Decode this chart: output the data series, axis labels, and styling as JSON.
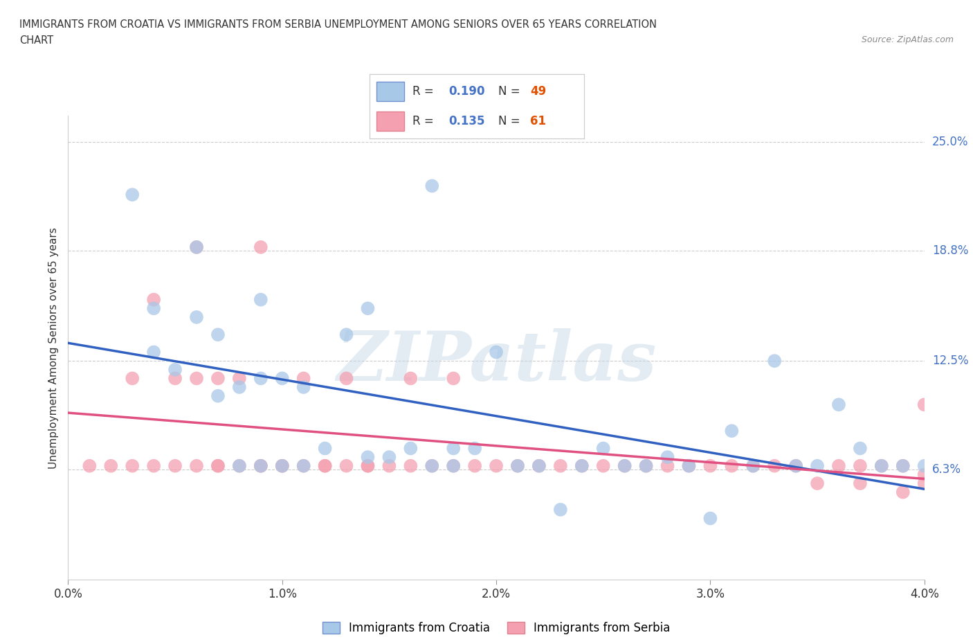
{
  "title_line1": "IMMIGRANTS FROM CROATIA VS IMMIGRANTS FROM SERBIA UNEMPLOYMENT AMONG SENIORS OVER 65 YEARS CORRELATION",
  "title_line2": "CHART",
  "source_text": "Source: ZipAtlas.com",
  "ylabel": "Unemployment Among Seniors over 65 years",
  "xlim": [
    0.0,
    0.04
  ],
  "ylim": [
    0.0,
    0.265
  ],
  "yticks": [
    0.0,
    0.063,
    0.125,
    0.188,
    0.25
  ],
  "ytick_labels": [
    "",
    "6.3%",
    "12.5%",
    "18.8%",
    "25.0%"
  ],
  "xticks": [
    0.0,
    0.01,
    0.02,
    0.03,
    0.04
  ],
  "xtick_labels": [
    "0.0%",
    "1.0%",
    "2.0%",
    "3.0%",
    "4.0%"
  ],
  "croatia_color": "#a8c8e8",
  "serbia_color": "#f4a0b0",
  "regression_croatia_color": "#3060c0",
  "regression_serbia_color": "#e05080",
  "R_croatia": 0.19,
  "N_croatia": 49,
  "R_serbia": 0.135,
  "N_serbia": 61,
  "legend_croatia_color": "#a8c8e8",
  "legend_serbia_color": "#f4a0b0",
  "legend_croatia_border": "#7090d0",
  "legend_serbia_border": "#e08090",
  "watermark_color": "#c8d8e8",
  "croatia_x": [
    0.003,
    0.004,
    0.004,
    0.005,
    0.006,
    0.006,
    0.007,
    0.007,
    0.008,
    0.008,
    0.009,
    0.009,
    0.009,
    0.01,
    0.01,
    0.011,
    0.011,
    0.012,
    0.013,
    0.014,
    0.014,
    0.015,
    0.016,
    0.017,
    0.017,
    0.018,
    0.018,
    0.019,
    0.02,
    0.021,
    0.022,
    0.023,
    0.024,
    0.025,
    0.026,
    0.027,
    0.028,
    0.029,
    0.03,
    0.031,
    0.032,
    0.033,
    0.034,
    0.035,
    0.036,
    0.037,
    0.038,
    0.039,
    0.04
  ],
  "croatia_y": [
    0.22,
    0.13,
    0.155,
    0.12,
    0.19,
    0.15,
    0.14,
    0.105,
    0.11,
    0.065,
    0.16,
    0.115,
    0.065,
    0.115,
    0.065,
    0.11,
    0.065,
    0.075,
    0.14,
    0.155,
    0.07,
    0.07,
    0.075,
    0.225,
    0.065,
    0.075,
    0.065,
    0.075,
    0.13,
    0.065,
    0.065,
    0.04,
    0.065,
    0.075,
    0.065,
    0.065,
    0.07,
    0.065,
    0.035,
    0.085,
    0.065,
    0.125,
    0.065,
    0.065,
    0.1,
    0.075,
    0.065,
    0.065,
    0.065
  ],
  "serbia_x": [
    0.001,
    0.002,
    0.003,
    0.003,
    0.004,
    0.004,
    0.005,
    0.005,
    0.006,
    0.006,
    0.006,
    0.007,
    0.007,
    0.007,
    0.008,
    0.008,
    0.009,
    0.009,
    0.009,
    0.01,
    0.01,
    0.011,
    0.011,
    0.012,
    0.012,
    0.013,
    0.013,
    0.014,
    0.014,
    0.015,
    0.016,
    0.016,
    0.017,
    0.018,
    0.018,
    0.019,
    0.02,
    0.021,
    0.022,
    0.023,
    0.024,
    0.025,
    0.026,
    0.027,
    0.028,
    0.029,
    0.03,
    0.031,
    0.032,
    0.033,
    0.034,
    0.035,
    0.036,
    0.037,
    0.037,
    0.038,
    0.039,
    0.039,
    0.04,
    0.04,
    0.04
  ],
  "serbia_y": [
    0.065,
    0.065,
    0.065,
    0.115,
    0.065,
    0.16,
    0.065,
    0.115,
    0.065,
    0.115,
    0.19,
    0.065,
    0.115,
    0.065,
    0.065,
    0.115,
    0.065,
    0.065,
    0.19,
    0.065,
    0.065,
    0.065,
    0.115,
    0.065,
    0.065,
    0.065,
    0.115,
    0.065,
    0.065,
    0.065,
    0.065,
    0.115,
    0.065,
    0.065,
    0.115,
    0.065,
    0.065,
    0.065,
    0.065,
    0.065,
    0.065,
    0.065,
    0.065,
    0.065,
    0.065,
    0.065,
    0.065,
    0.065,
    0.065,
    0.065,
    0.065,
    0.055,
    0.065,
    0.055,
    0.065,
    0.065,
    0.05,
    0.065,
    0.06,
    0.055,
    0.1
  ]
}
